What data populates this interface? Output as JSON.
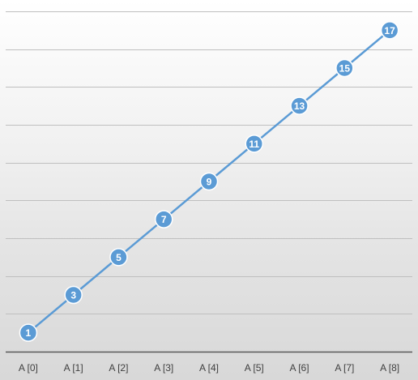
{
  "chart_data": {
    "type": "line",
    "title": "",
    "xlabel": "",
    "ylabel": "",
    "categories": [
      "A [0]",
      "A [1]",
      "A [2]",
      "A [3]",
      "A [4]",
      "A [5]",
      "A [6]",
      "A [7]",
      "A [8]"
    ],
    "series": [
      {
        "values": [
          1,
          3,
          5,
          7,
          9,
          11,
          13,
          15,
          17
        ],
        "color": "#5b9bd5",
        "marker": "circle",
        "data_labels": true
      }
    ],
    "ylim": [
      0,
      18
    ],
    "y_gridline_step": 2,
    "grid": true,
    "legend": "none",
    "y_tick_labels_visible": false,
    "colors": {
      "series": "#5b9bd5",
      "gridline": "#bfbfbf",
      "axis": "#595959",
      "tick_text": "#404040",
      "marker_border": "#ffffff"
    }
  }
}
